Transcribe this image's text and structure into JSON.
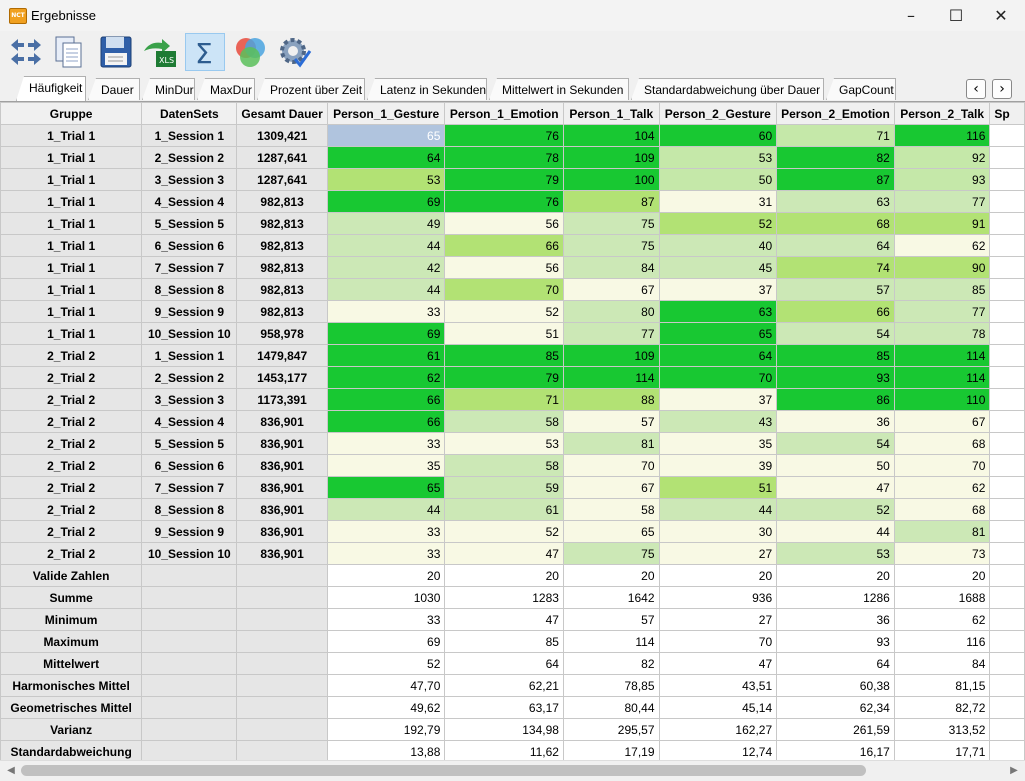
{
  "window": {
    "title": "Ergebnisse",
    "app_icon_text": "NCT"
  },
  "toolbar": {
    "buttons": [
      {
        "name": "arrows-exchange-icon",
        "active": false
      },
      {
        "name": "copy-icon",
        "active": false
      },
      {
        "name": "save-icon",
        "active": false
      },
      {
        "name": "export-xls-icon",
        "active": false
      },
      {
        "name": "sum-icon",
        "active": true
      },
      {
        "name": "venn-circles-icon",
        "active": false
      },
      {
        "name": "settings-check-icon",
        "active": false
      }
    ]
  },
  "tabs": [
    "Häufigkeit",
    "Dauer",
    "MinDur",
    "MaxDur",
    "Prozent über Zeit",
    "Latenz in Sekunden",
    "Mittelwert in Sekunden",
    "Standardabweichung über Dauer",
    "GapCount"
  ],
  "active_tab": 0,
  "grid": {
    "columns": [
      "Gruppe",
      "DatenSets",
      "Gesamt Dauer",
      "Person_1_Gesture",
      "Person_1_Emotion",
      "Person_1_Talk",
      "Person_2_Gesture",
      "Person_2_Emotion",
      "Person_2_Talk",
      "Sp"
    ],
    "rows": [
      [
        "1_Trial 1",
        "1_Session 1",
        "1309,421",
        "65",
        "76",
        "104",
        "60",
        "71",
        "116"
      ],
      [
        "1_Trial 1",
        "2_Session 2",
        "1287,641",
        "64",
        "78",
        "109",
        "53",
        "82",
        "92"
      ],
      [
        "1_Trial 1",
        "3_Session 3",
        "1287,641",
        "53",
        "79",
        "100",
        "50",
        "87",
        "93"
      ],
      [
        "1_Trial 1",
        "4_Session 4",
        "982,813",
        "69",
        "76",
        "87",
        "31",
        "63",
        "77"
      ],
      [
        "1_Trial 1",
        "5_Session 5",
        "982,813",
        "49",
        "56",
        "75",
        "52",
        "68",
        "91"
      ],
      [
        "1_Trial 1",
        "6_Session 6",
        "982,813",
        "44",
        "66",
        "75",
        "40",
        "64",
        "62"
      ],
      [
        "1_Trial 1",
        "7_Session 7",
        "982,813",
        "42",
        "56",
        "84",
        "45",
        "74",
        "90"
      ],
      [
        "1_Trial 1",
        "8_Session 8",
        "982,813",
        "44",
        "70",
        "67",
        "37",
        "57",
        "85"
      ],
      [
        "1_Trial 1",
        "9_Session 9",
        "982,813",
        "33",
        "52",
        "80",
        "63",
        "66",
        "77"
      ],
      [
        "1_Trial 1",
        "10_Session 10",
        "958,978",
        "69",
        "51",
        "77",
        "65",
        "54",
        "78"
      ],
      [
        "2_Trial 2",
        "1_Session 1",
        "1479,847",
        "61",
        "85",
        "109",
        "64",
        "85",
        "114"
      ],
      [
        "2_Trial 2",
        "2_Session 2",
        "1453,177",
        "62",
        "79",
        "114",
        "70",
        "93",
        "114"
      ],
      [
        "2_Trial 2",
        "3_Session 3",
        "1173,391",
        "66",
        "71",
        "88",
        "37",
        "86",
        "110"
      ],
      [
        "2_Trial 2",
        "4_Session 4",
        "836,901",
        "66",
        "58",
        "57",
        "43",
        "36",
        "67"
      ],
      [
        "2_Trial 2",
        "5_Session 5",
        "836,901",
        "33",
        "53",
        "81",
        "35",
        "54",
        "68"
      ],
      [
        "2_Trial 2",
        "6_Session 6",
        "836,901",
        "35",
        "58",
        "70",
        "39",
        "50",
        "70"
      ],
      [
        "2_Trial 2",
        "7_Session 7",
        "836,901",
        "65",
        "59",
        "67",
        "51",
        "47",
        "62"
      ],
      [
        "2_Trial 2",
        "8_Session 8",
        "836,901",
        "44",
        "61",
        "58",
        "44",
        "52",
        "68"
      ],
      [
        "2_Trial 2",
        "9_Session 9",
        "836,901",
        "33",
        "52",
        "65",
        "30",
        "44",
        "81"
      ],
      [
        "2_Trial 2",
        "10_Session 10",
        "836,901",
        "33",
        "47",
        "75",
        "27",
        "53",
        "73"
      ]
    ],
    "cell_colors": [
      [
        "#b0c4de",
        "#18c832",
        "#18c832",
        "#18c832",
        "#c5e8a9",
        "#18c832"
      ],
      [
        "#18c832",
        "#18c832",
        "#18c832",
        "#c5e8a9",
        "#18c832",
        "#c5e8a9"
      ],
      [
        "#b2e274",
        "#18c832",
        "#18c832",
        "#c5e8a9",
        "#18c832",
        "#c5e8a9"
      ],
      [
        "#18c832",
        "#18c832",
        "#b2e274",
        "#f8f9e4",
        "#cce8b6",
        "#cce8b6"
      ],
      [
        "#cce8b6",
        "#f8f9e4",
        "#cce8b6",
        "#b2e274",
        "#b2e274",
        "#b2e274"
      ],
      [
        "#cce8b6",
        "#b2e274",
        "#cce8b6",
        "#cce8b6",
        "#cce8b6",
        "#f8f9e4"
      ],
      [
        "#cce8b6",
        "#f8f9e4",
        "#cce8b6",
        "#cce8b6",
        "#b2e274",
        "#b2e274"
      ],
      [
        "#cce8b6",
        "#b2e274",
        "#f8f9e4",
        "#f8f9e4",
        "#cce8b6",
        "#cce8b6"
      ],
      [
        "#f8f9e4",
        "#f8f9e4",
        "#cce8b6",
        "#18c832",
        "#b2e274",
        "#cce8b6"
      ],
      [
        "#18c832",
        "#f8f9e4",
        "#cce8b6",
        "#18c832",
        "#cce8b6",
        "#cce8b6"
      ],
      [
        "#18c832",
        "#18c832",
        "#18c832",
        "#18c832",
        "#18c832",
        "#18c832"
      ],
      [
        "#18c832",
        "#18c832",
        "#18c832",
        "#18c832",
        "#18c832",
        "#18c832"
      ],
      [
        "#18c832",
        "#b2e274",
        "#b2e274",
        "#f8f9e4",
        "#18c832",
        "#18c832"
      ],
      [
        "#18c832",
        "#cce8b6",
        "#f8f9e4",
        "#cce8b6",
        "#f8f9e4",
        "#f8f9e4"
      ],
      [
        "#f8f9e4",
        "#f8f9e4",
        "#cce8b6",
        "#f8f9e4",
        "#cce8b6",
        "#f8f9e4"
      ],
      [
        "#f8f9e4",
        "#cce8b6",
        "#f8f9e4",
        "#f8f9e4",
        "#f8f9e4",
        "#f8f9e4"
      ],
      [
        "#18c832",
        "#cce8b6",
        "#f8f9e4",
        "#b2e274",
        "#f8f9e4",
        "#f8f9e4"
      ],
      [
        "#cce8b6",
        "#cce8b6",
        "#f8f9e4",
        "#cce8b6",
        "#cce8b6",
        "#f8f9e4"
      ],
      [
        "#f8f9e4",
        "#f8f9e4",
        "#f8f9e4",
        "#f8f9e4",
        "#f8f9e4",
        "#cce8b6"
      ],
      [
        "#f8f9e4",
        "#f8f9e4",
        "#cce8b6",
        "#f8f9e4",
        "#cce8b6",
        "#f8f9e4"
      ]
    ],
    "stats": [
      {
        "label": "Valide Zahlen",
        "values": [
          "20",
          "20",
          "20",
          "20",
          "20",
          "20"
        ]
      },
      {
        "label": "Summe",
        "values": [
          "1030",
          "1283",
          "1642",
          "936",
          "1286",
          "1688"
        ]
      },
      {
        "label": "Minimum",
        "values": [
          "33",
          "47",
          "57",
          "27",
          "36",
          "62"
        ]
      },
      {
        "label": "Maximum",
        "values": [
          "69",
          "85",
          "114",
          "70",
          "93",
          "116"
        ]
      },
      {
        "label": "Mittelwert",
        "values": [
          "52",
          "64",
          "82",
          "47",
          "64",
          "84"
        ]
      },
      {
        "label": "Harmonisches Mittel",
        "values": [
          "47,70",
          "62,21",
          "78,85",
          "43,51",
          "60,38",
          "81,15"
        ]
      },
      {
        "label": "Geometrisches Mittel",
        "values": [
          "49,62",
          "63,17",
          "80,44",
          "45,14",
          "62,34",
          "82,72"
        ]
      },
      {
        "label": "Varianz",
        "values": [
          "192,79",
          "134,98",
          "295,57",
          "162,27",
          "261,59",
          "313,52"
        ]
      },
      {
        "label": "Standardabweichung",
        "values": [
          "13,88",
          "11,62",
          "17,19",
          "12,74",
          "16,17",
          "17,71"
        ]
      }
    ]
  }
}
